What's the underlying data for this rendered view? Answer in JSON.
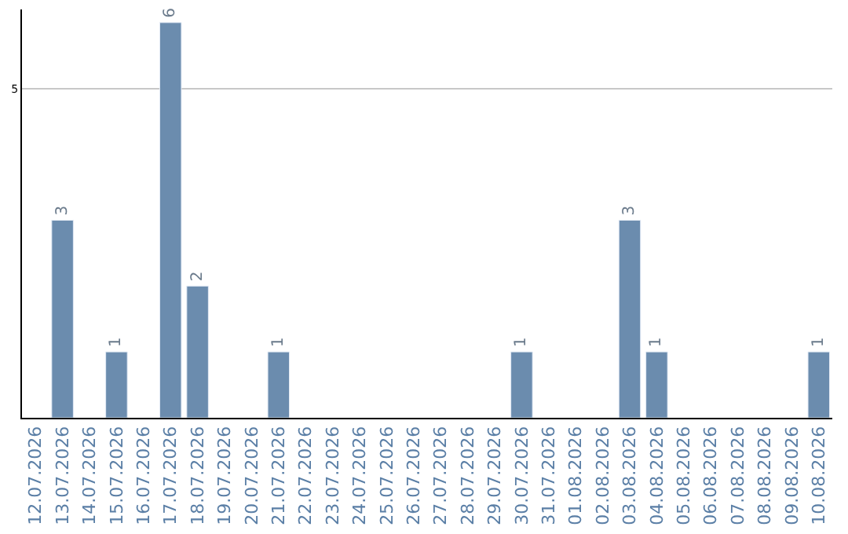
{
  "chart_data": {
    "type": "bar",
    "categories": [
      "12.07.2026",
      "13.07.2026",
      "14.07.2026",
      "15.07.2026",
      "16.07.2026",
      "17.07.2026",
      "18.07.2026",
      "19.07.2026",
      "20.07.2026",
      "21.07.2026",
      "22.07.2026",
      "23.07.2026",
      "24.07.2026",
      "25.07.2026",
      "26.07.2026",
      "27.07.2026",
      "28.07.2026",
      "29.07.2026",
      "30.07.2026",
      "31.07.2026",
      "01.08.2026",
      "02.08.2026",
      "03.08.2026",
      "04.08.2026",
      "05.08.2026",
      "06.08.2026",
      "07.08.2026",
      "08.08.2026",
      "09.08.2026",
      "10.08.2026"
    ],
    "values": [
      null,
      3,
      null,
      1,
      null,
      6,
      2,
      null,
      null,
      1,
      null,
      null,
      null,
      null,
      null,
      null,
      null,
      null,
      1,
      null,
      null,
      null,
      3,
      1,
      null,
      null,
      null,
      null,
      null,
      1
    ],
    "value_labels": [
      null,
      "3",
      null,
      "1",
      null,
      "6",
      "2",
      null,
      null,
      "1",
      null,
      null,
      null,
      null,
      null,
      null,
      null,
      null,
      "1",
      null,
      null,
      null,
      "3",
      "1",
      null,
      null,
      null,
      null,
      null,
      "1"
    ],
    "color": "#6b8cae",
    "ylim": [
      0,
      6.2
    ],
    "yticks": [
      5
    ],
    "grid": "y",
    "legend": false
  }
}
